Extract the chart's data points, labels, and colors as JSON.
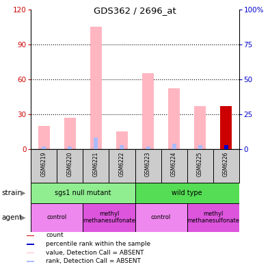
{
  "title": "GDS362 / 2696_at",
  "samples": [
    "GSM6219",
    "GSM6220",
    "GSM6221",
    "GSM6222",
    "GSM6223",
    "GSM6224",
    "GSM6225",
    "GSM6226"
  ],
  "pink_values": [
    20,
    27,
    105,
    15,
    65,
    52,
    37,
    0
  ],
  "blue_rank_values": [
    2,
    2,
    8,
    3,
    2,
    4,
    3,
    2
  ],
  "red_count_values": [
    0,
    0,
    0,
    0,
    0,
    0,
    0,
    37
  ],
  "blue_pct_values": [
    0,
    0,
    0,
    0,
    0,
    0,
    0,
    3
  ],
  "ylim_left": [
    0,
    120
  ],
  "ylim_right": [
    0,
    100
  ],
  "yticks_left": [
    0,
    30,
    60,
    90,
    120
  ],
  "yticks_right": [
    0,
    25,
    50,
    75,
    100
  ],
  "ytick_labels_right": [
    "0",
    "25",
    "50",
    "75",
    "100%"
  ],
  "strain_groups": [
    {
      "label": "sgs1 null mutant",
      "cols": [
        0,
        3
      ],
      "color": "#90EE90"
    },
    {
      "label": "wild type",
      "cols": [
        4,
        7
      ],
      "color": "#55DD55"
    }
  ],
  "agent_groups": [
    {
      "label": "control",
      "cols": [
        0,
        1
      ],
      "color": "#EE88EE"
    },
    {
      "label": "methyl\nmethanesulfonate",
      "cols": [
        2,
        3
      ],
      "color": "#DD55DD"
    },
    {
      "label": "control",
      "cols": [
        4,
        5
      ],
      "color": "#EE88EE"
    },
    {
      "label": "methyl\nmethanesulfonate",
      "cols": [
        6,
        7
      ],
      "color": "#DD55DD"
    }
  ],
  "color_pink": "#FFB6C1",
  "color_light_blue": "#AABBFF",
  "color_red": "#CC0000",
  "color_blue": "#0000CC",
  "color_left_axis": "#CC0000",
  "color_right_axis": "#0000CC",
  "sample_box_color": "#CCCCCC",
  "legend_items": [
    {
      "color": "#CC0000",
      "label": "count"
    },
    {
      "color": "#0000CC",
      "label": "percentile rank within the sample"
    },
    {
      "color": "#FFB6C1",
      "label": "value, Detection Call = ABSENT"
    },
    {
      "color": "#AABBFF",
      "label": "rank, Detection Call = ABSENT"
    }
  ]
}
